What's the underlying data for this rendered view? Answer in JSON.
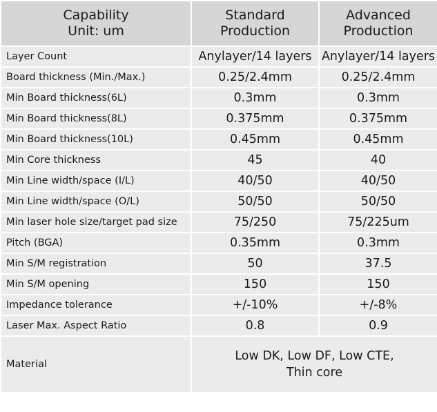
{
  "header": {
    "capability_line1": "Capability",
    "capability_line2": "Unit: um",
    "standard_line1": "Standard",
    "standard_line2": "Production",
    "advanced_line1": "Advanced",
    "advanced_line2": "Production"
  },
  "rows": [
    {
      "label": "Layer Count",
      "standard": "Anylayer/14 layers",
      "advanced": "Anylayer/14 layers"
    },
    {
      "label": "Board thickness (Min./Max.)",
      "standard": "0.25/2.4mm",
      "advanced": "0.25/2.4mm"
    },
    {
      "label": "Min Board thickness(6L)",
      "standard": "0.3mm",
      "advanced": "0.3mm"
    },
    {
      "label": "Min Board thickness(8L)",
      "standard": "0.375mm",
      "advanced": "0.375mm"
    },
    {
      "label": "Min Board thickness(10L)",
      "standard": "0.45mm",
      "advanced": "0.45mm"
    },
    {
      "label": "Min Core thickness",
      "standard": "45",
      "advanced": "40"
    },
    {
      "label": "Min Line width/space (I/L)",
      "standard": "40/50",
      "advanced": "40/50"
    },
    {
      "label": "Min Line width/space (O/L)",
      "standard": "50/50",
      "advanced": "50/50"
    },
    {
      "label": "Min laser hole size/target pad size",
      "standard": "75/250",
      "advanced": "75/225um"
    },
    {
      "label": "Pitch (BGA)",
      "standard": "0.35mm",
      "advanced": "0.3mm"
    },
    {
      "label": "Min S/M registration",
      "standard": "50",
      "advanced": "37.5"
    },
    {
      "label": "Min S/M opening",
      "standard": "150",
      "advanced": "150"
    },
    {
      "label": "Impedance tolerance",
      "standard": "+/-10%",
      "advanced": "+/-8%"
    },
    {
      "label": "Laser Max. Aspect Ratio",
      "standard": "0.8",
      "advanced": "0.9"
    }
  ],
  "material": {
    "label": "Material",
    "value_line1": "Low DK, Low DF, Low CTE,",
    "value_line2": "Thin core"
  }
}
